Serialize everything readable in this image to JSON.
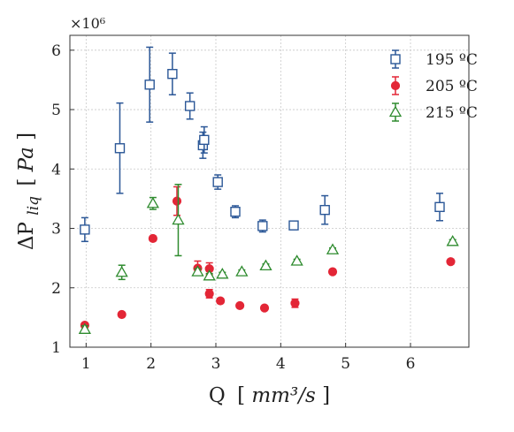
{
  "chart_data": {
    "type": "scatter",
    "title": "",
    "xlabel": {
      "main": "Q",
      "unit": "mm³/s"
    },
    "ylabel": {
      "main": "ΔP",
      "subscript": "liq",
      "unit": "Pa"
    },
    "y_multiplier": "×10⁶",
    "xlim": [
      0.75,
      6.9
    ],
    "ylim": [
      1.0,
      6.25
    ],
    "x_ticks": [
      1,
      2,
      3,
      4,
      5,
      6
    ],
    "y_ticks": [
      1,
      2,
      3,
      4,
      5,
      6
    ],
    "grid": true,
    "legend_position": "top-right",
    "series": [
      {
        "name": "195 ºC",
        "color": "#2b5797",
        "marker": "open-square",
        "points": [
          {
            "x": 0.98,
            "y": 2.98,
            "err": 0.2
          },
          {
            "x": 1.52,
            "y": 4.35,
            "err": 0.76
          },
          {
            "x": 1.98,
            "y": 5.42,
            "err": 0.63
          },
          {
            "x": 2.33,
            "y": 5.6,
            "err": 0.35
          },
          {
            "x": 2.6,
            "y": 5.06,
            "err": 0.22
          },
          {
            "x": 2.8,
            "y": 4.4,
            "err": 0.22
          },
          {
            "x": 2.82,
            "y": 4.49,
            "err": 0.22
          },
          {
            "x": 3.03,
            "y": 3.78,
            "err": 0.12
          },
          {
            "x": 3.3,
            "y": 3.28,
            "err": 0.1
          },
          {
            "x": 3.72,
            "y": 3.04,
            "err": 0.1
          },
          {
            "x": 4.2,
            "y": 3.05,
            "err": 0.07
          },
          {
            "x": 4.68,
            "y": 3.31,
            "err": 0.24
          },
          {
            "x": 6.45,
            "y": 3.36,
            "err": 0.23
          }
        ]
      },
      {
        "name": "205 ºC",
        "color": "#e32636",
        "marker": "filled-circle",
        "points": [
          {
            "x": 0.98,
            "y": 1.37,
            "err": 0.03
          },
          {
            "x": 1.55,
            "y": 1.55,
            "err": 0.03
          },
          {
            "x": 2.03,
            "y": 2.83,
            "err": 0.04
          },
          {
            "x": 2.4,
            "y": 3.46,
            "err": 0.24
          },
          {
            "x": 2.72,
            "y": 2.33,
            "err": 0.12
          },
          {
            "x": 2.9,
            "y": 2.32,
            "err": 0.1
          },
          {
            "x": 2.9,
            "y": 1.9,
            "err": 0.07
          },
          {
            "x": 3.07,
            "y": 1.78,
            "err": 0.04
          },
          {
            "x": 3.37,
            "y": 1.7,
            "err": 0.03
          },
          {
            "x": 3.75,
            "y": 1.66,
            "err": 0.03
          },
          {
            "x": 4.22,
            "y": 1.74,
            "err": 0.07
          },
          {
            "x": 4.8,
            "y": 2.27,
            "err": 0.04
          },
          {
            "x": 6.62,
            "y": 2.44,
            "err": 0.04
          }
        ]
      },
      {
        "name": "215 ºC",
        "color": "#2e8b2e",
        "marker": "open-triangle",
        "points": [
          {
            "x": 0.98,
            "y": 1.3,
            "err": 0.06
          },
          {
            "x": 1.55,
            "y": 2.26,
            "err": 0.12
          },
          {
            "x": 2.03,
            "y": 3.42,
            "err": 0.1
          },
          {
            "x": 2.42,
            "y": 3.14,
            "err": 0.6
          },
          {
            "x": 2.72,
            "y": 2.27,
            "err": 0.05
          },
          {
            "x": 2.9,
            "y": 2.2,
            "err": 0.04
          },
          {
            "x": 3.1,
            "y": 2.23,
            "err": 0.03
          },
          {
            "x": 3.4,
            "y": 2.27,
            "err": 0.03
          },
          {
            "x": 3.77,
            "y": 2.37,
            "err": 0.03
          },
          {
            "x": 4.25,
            "y": 2.45,
            "err": 0.03
          },
          {
            "x": 4.8,
            "y": 2.64,
            "err": 0.03
          },
          {
            "x": 6.65,
            "y": 2.78,
            "err": 0.03
          }
        ]
      }
    ]
  }
}
